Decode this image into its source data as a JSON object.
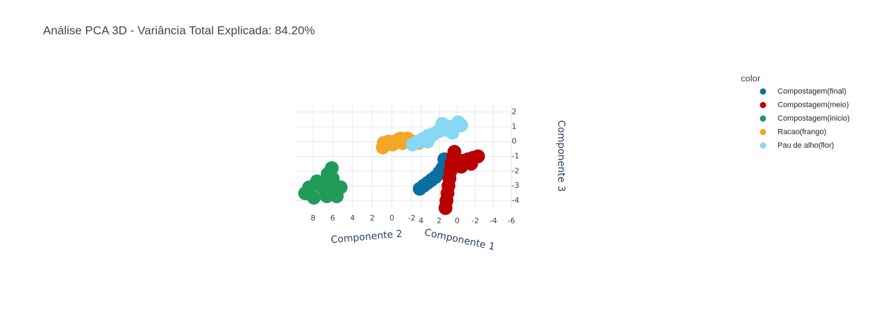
{
  "chart_data": {
    "type": "scatter3d",
    "title": "Análise PCA 3D - Variância Total Explicada: 84.20%",
    "xaxis_title": "Componente 1",
    "yaxis_title": "Componente 2",
    "zaxis_title": "Componente 3",
    "legend_title": "color",
    "legend_position": "right",
    "grid": true,
    "xlim": [
      -6.5,
      4.5
    ],
    "ylim": [
      -2.5,
      9.8
    ],
    "zlim": [
      -4.5,
      2.5
    ],
    "xticks": [
      4,
      2,
      0,
      -2,
      -4,
      -6
    ],
    "yticks": [
      8,
      6,
      4,
      2,
      0,
      -2
    ],
    "zticks": [
      2,
      1,
      0,
      -1,
      -2,
      -3,
      -4
    ],
    "series": [
      {
        "name": "Compostagem(final)",
        "color": "#0a6fa0",
        "x": [
          0,
          0,
          0,
          0,
          0,
          0,
          0,
          0,
          0
        ],
        "y": [
          1.3,
          0.9,
          0.5,
          0.1,
          -0.3,
          -0.7,
          -1.0,
          -1.3,
          -1.2
        ],
        "z": [
          -3.2,
          -3.0,
          -2.8,
          -2.6,
          -2.4,
          -2.1,
          -1.8,
          -1.5,
          -1.2
        ]
      },
      {
        "name": "Compostagem(meio)",
        "color": "#b80000",
        "x": [
          -1,
          -1,
          -1,
          -1,
          -1,
          -1,
          -1,
          -1,
          -1,
          -1,
          -1,
          -1,
          -1,
          -1,
          -1,
          -1
        ],
        "y": [
          -0.4,
          -0.5,
          -0.6,
          -0.7,
          -0.8,
          -0.9,
          -1.0,
          -1.2,
          -1.3,
          -1.7,
          -2.2,
          -2.7,
          -3.2,
          -3.7,
          -2.0,
          -3.0
        ],
        "z": [
          -4.5,
          -4.0,
          -3.5,
          -3.0,
          -2.5,
          -2.0,
          -1.5,
          -1.0,
          -0.7,
          -1.5,
          -1.3,
          -1.2,
          -1.1,
          -1.0,
          -1.7,
          -1.5
        ]
      },
      {
        "name": "Compostagem(inicio)",
        "color": "#229a5a",
        "x": [
          4.5,
          4.4,
          4.3,
          4.5,
          4.4,
          4.5,
          4.2,
          4.5,
          4.3,
          4.4,
          4.5,
          4.3,
          4.5
        ],
        "y": [
          8.4,
          7.7,
          6.7,
          6.1,
          6.1,
          5.2,
          7.0,
          8.8,
          8.1,
          6.7,
          5.6,
          7.4,
          6.3
        ],
        "z": [
          -3.1,
          -2.7,
          -2.2,
          -1.8,
          -2.5,
          -3.1,
          -3.3,
          -3.5,
          -3.8,
          -3.7,
          -3.7,
          -3.0,
          -3.0
        ]
      },
      {
        "name": "Racao(frango)",
        "color": "#f5a623",
        "x": [
          3,
          3,
          3,
          3,
          3,
          3,
          3,
          3,
          3,
          3
        ],
        "y": [
          2.3,
          2.2,
          1.7,
          1.3,
          0.8,
          0.3,
          -0.2,
          -0.8,
          -1.3,
          0.5
        ],
        "z": [
          -0.4,
          -0.1,
          0.0,
          -0.2,
          0.1,
          -0.1,
          0.2,
          0.0,
          -0.1,
          0.2
        ]
      },
      {
        "name": "Pau de alho(flor)",
        "color": "#87d8f5",
        "x": [
          0,
          0,
          0,
          0,
          0,
          0,
          0,
          0,
          0,
          0,
          0,
          0,
          0,
          0
        ],
        "y": [
          2.0,
          1.5,
          0.9,
          0.4,
          -0.1,
          -0.6,
          -1.2,
          -1.7,
          -2.3,
          -2.9,
          -1.0,
          0.5,
          -2.0,
          -2.6
        ],
        "z": [
          -0.2,
          0.0,
          0.2,
          0.4,
          0.5,
          0.7,
          0.8,
          1.0,
          1.0,
          1.1,
          1.2,
          0.0,
          0.6,
          1.3
        ]
      }
    ]
  }
}
